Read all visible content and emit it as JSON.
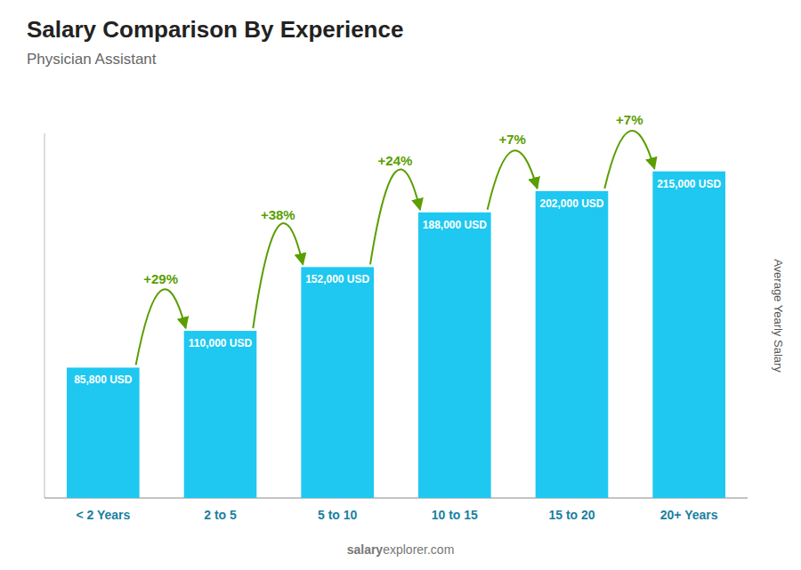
{
  "chart_data": {
    "type": "bar",
    "title": "Salary Comparison By Experience",
    "subtitle": "Physician Assistant",
    "categories": [
      "< 2 Years",
      "2 to 5",
      "5 to 10",
      "10 to 15",
      "15 to 20",
      "20+ Years"
    ],
    "values": [
      85800,
      110000,
      152000,
      188000,
      202000,
      215000
    ],
    "value_labels": [
      "85,800 USD",
      "110,000 USD",
      "152,000 USD",
      "188,000 USD",
      "202,000 USD",
      "215,000 USD"
    ],
    "data_labels": true,
    "color": "#1ec8f0",
    "ylabel": "Average Yearly Salary",
    "ylim": [
      0,
      240000
    ],
    "tick_labels": "x",
    "grid": false,
    "annotations": [
      "+29%",
      "+38%",
      "+24%",
      "+7%",
      "+7%"
    ],
    "watermark": [
      "salary",
      "explorer.com"
    ]
  }
}
